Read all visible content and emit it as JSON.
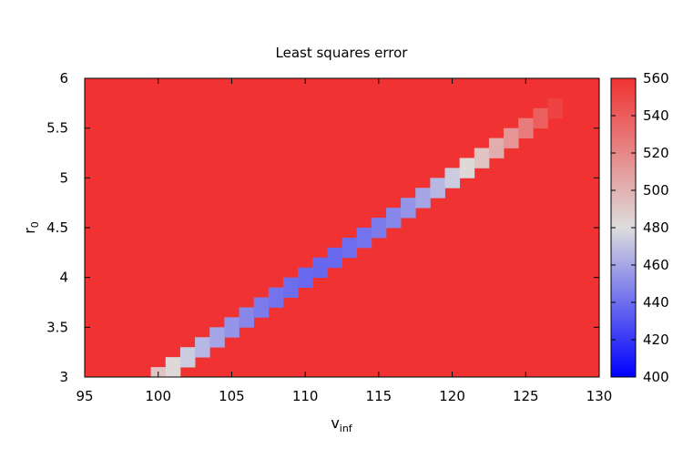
{
  "chart_data": {
    "type": "heatmap",
    "title": "Least squares error",
    "xlabel": {
      "main": "v",
      "sub": "inf"
    },
    "ylabel": {
      "main": "r",
      "sub": "0"
    },
    "xlim": [
      95,
      130
    ],
    "ylim": [
      3,
      6
    ],
    "xticks": [
      "95",
      "100",
      "105",
      "110",
      "115",
      "120",
      "125",
      "130"
    ],
    "yticks": [
      "3",
      "3.5",
      "4",
      "4.5",
      "5",
      "5.5",
      "6"
    ],
    "grid": false,
    "cell_dx": 1,
    "cell_dy": 0.1,
    "colorbar": {
      "range": [
        400,
        560
      ],
      "ticks": [
        "400",
        "420",
        "440",
        "460",
        "480",
        "500",
        "520",
        "540",
        "560"
      ],
      "stops": [
        {
          "value": 400,
          "color": "#0000ff"
        },
        {
          "value": 480,
          "color": "#dddddd"
        },
        {
          "value": 560,
          "color": "#f03232"
        }
      ]
    },
    "valley": {
      "clip_max": 560,
      "min_value": 415,
      "min_at": {
        "v": 111,
        "r": 4.1
      },
      "ridge_slope_r_per_v": 0.1,
      "along_curvature": 0.45,
      "across_curvature": 9000,
      "v_range": [
        99,
        128
      ]
    }
  }
}
